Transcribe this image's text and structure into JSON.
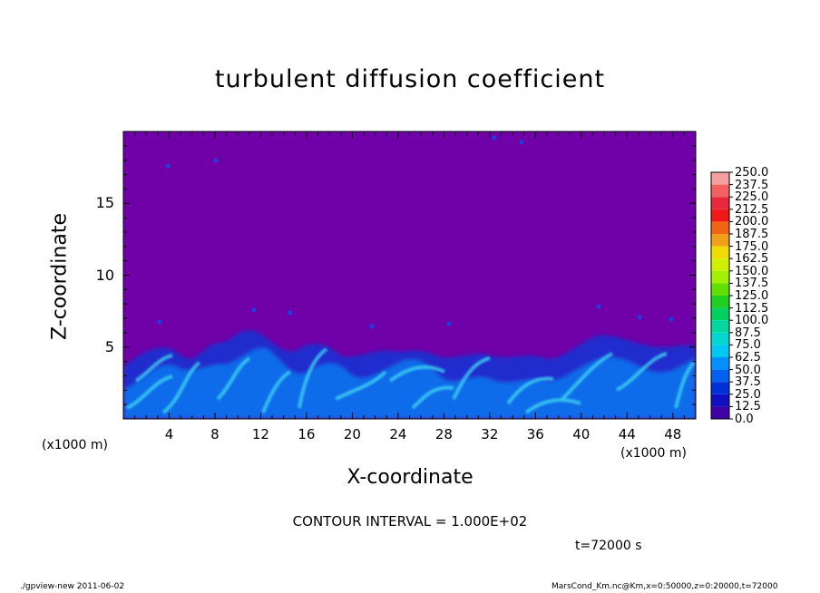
{
  "chart_data": {
    "type": "heatmap",
    "title": "turbulent diffusion coefficient",
    "xlabel": "X-coordinate",
    "ylabel": "Z-coordinate",
    "x_unit_label": "(x1000 m)",
    "x_ticks": [
      "4",
      "8",
      "12",
      "16",
      "20",
      "24",
      "28",
      "32",
      "36",
      "40",
      "44",
      "48"
    ],
    "y_ticks": [
      "5",
      "10",
      "15"
    ],
    "xlim": [
      0,
      50
    ],
    "ylim": [
      0,
      20
    ],
    "colorbar": {
      "levels": [
        "250.0",
        "237.5",
        "225.0",
        "212.5",
        "200.0",
        "187.5",
        "175.0",
        "162.5",
        "150.0",
        "137.5",
        "125.0",
        "112.5",
        "100.0",
        "87.5",
        "75.0",
        "62.5",
        "50.0",
        "37.5",
        "25.0",
        "12.5",
        "0.0"
      ],
      "colors": [
        "#f4a0a0",
        "#f26060",
        "#e8283c",
        "#f01818",
        "#f06414",
        "#f0a018",
        "#f0dc00",
        "#d0f000",
        "#a0f000",
        "#60e000",
        "#20d020",
        "#00d060",
        "#00d8a0",
        "#00d8d0",
        "#00c8f0",
        "#0090ff",
        "#0060f0",
        "#0030d8",
        "#1010c0",
        "#4000a8"
      ],
      "background_color": "#7000a8"
    },
    "notes": [
      "CONTOUR INTERVAL = 1.000E+02",
      "t=72000 s"
    ]
  },
  "footer": {
    "left": "./gpview-new  2011-06-02",
    "right": "MarsCond_Km.nc@Km,x=0:50000,z=0:20000,t=72000"
  }
}
